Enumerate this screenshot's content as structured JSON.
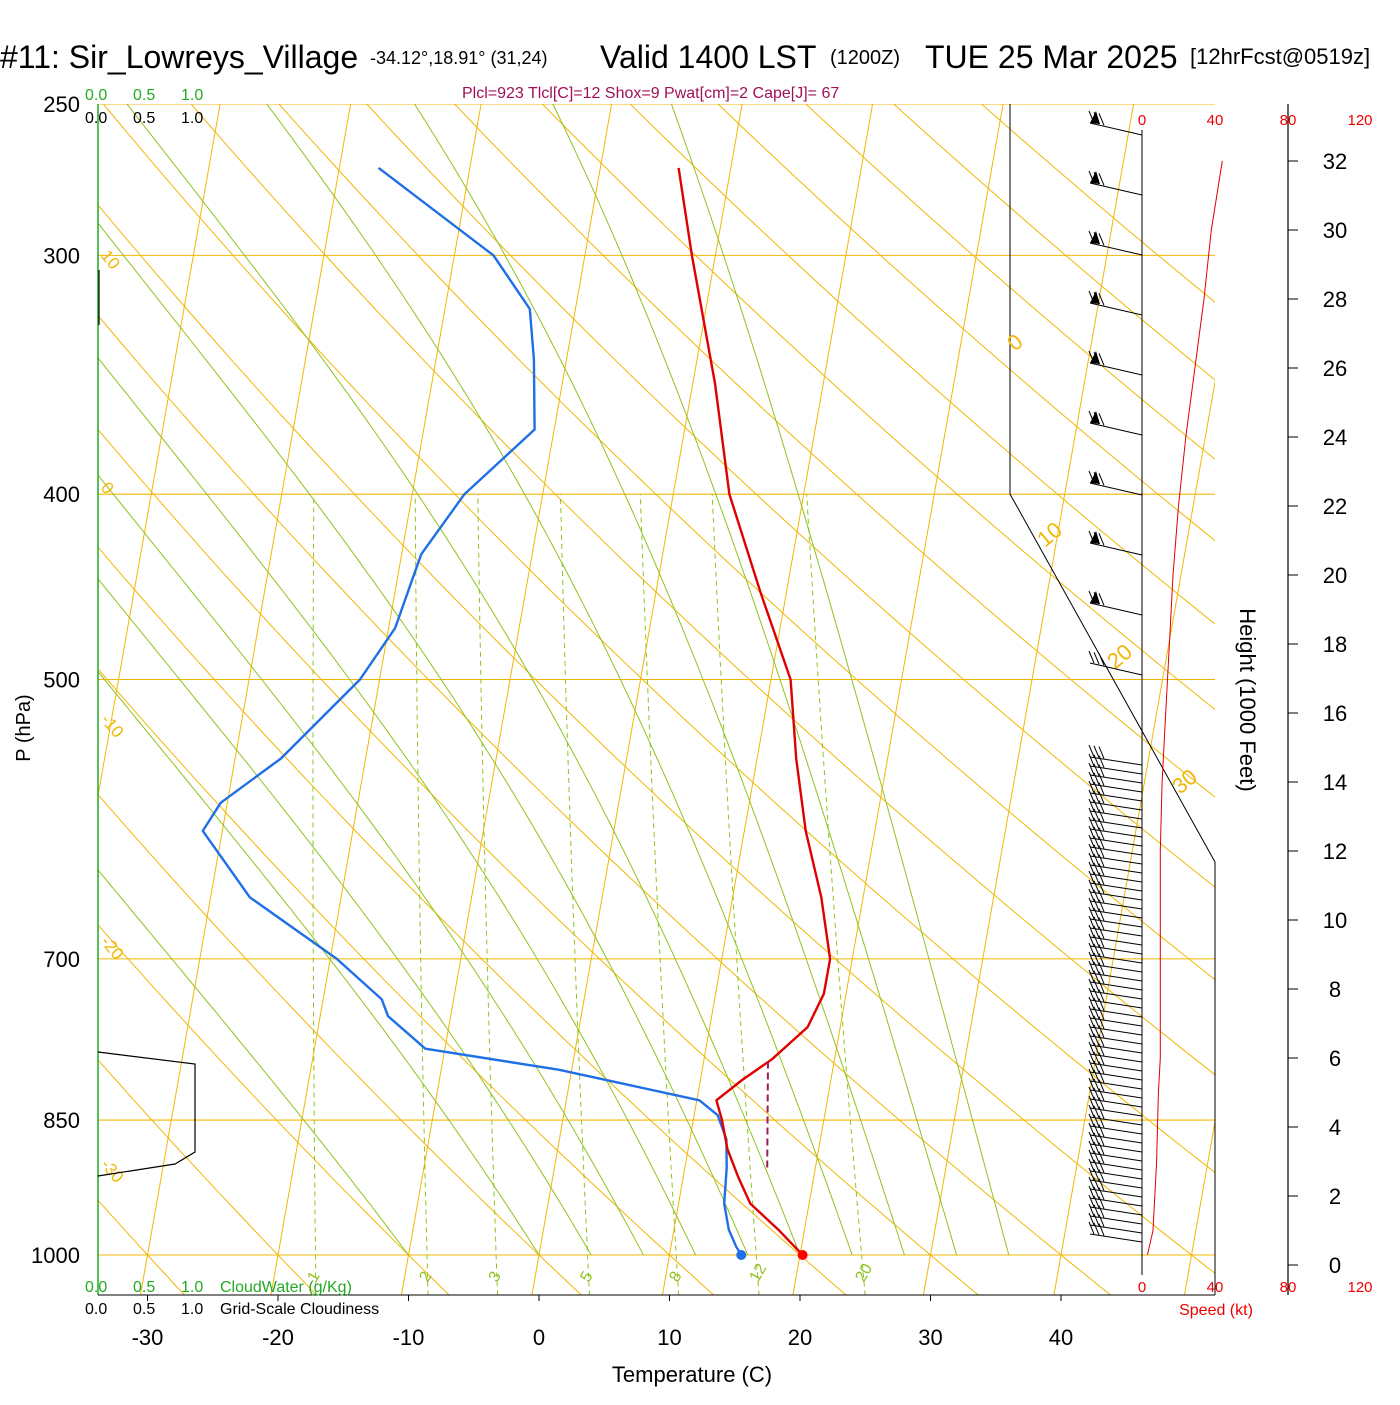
{
  "header": {
    "site": "#11: Sir_Lowreys_Village",
    "coords": "-34.12°,18.91° (31,24)",
    "valid": "Valid 1400 LST",
    "zulu": "(1200Z)",
    "date": "TUE 25 Mar 2025",
    "forecast": "[12hrFcst@0519z]"
  },
  "indices": "Plcl=923 Tlcl[C]=12 Shox=9 Pwat[cm]=2 Cape[J]= 67",
  "colors": {
    "isotherm": "#f2b705",
    "mixing_ratio": "#8fc31f",
    "temperature": "#e00000",
    "dewpoint": "#1f6fe6",
    "parcel": "#9b1b5a",
    "green_text": "#22aa22",
    "index_text": "#a0105a",
    "red_text": "#ee0000"
  },
  "scales": {
    "cloud_water_ticks": [
      "0.0",
      "0.5",
      "1.0"
    ],
    "cloudiness_ticks": [
      "0.0",
      "0.5",
      "1.0"
    ],
    "cloud_water_label": "CloudWater (g/Kg)",
    "cloudiness_label": "Grid-Scale Cloudiness",
    "speed_ticks": [
      "0",
      "40",
      "80",
      "120"
    ],
    "speed_label": "Speed (kt)"
  },
  "isotherm_labels": [
    "10",
    "0",
    "-10",
    "-20",
    "-30",
    "0",
    "10",
    "20",
    "30"
  ],
  "mixing_ratio_labels": [
    "1",
    "2",
    "3",
    "5",
    "8",
    "12",
    "20"
  ],
  "chart_data": {
    "type": "skew-t log-p sounding",
    "xlabel": "Temperature (C)",
    "ylabel": "P (hPa)",
    "height_label": "Height (1000 Feet)",
    "xlim": [
      -33,
      46
    ],
    "ylim_hPa": [
      1000,
      250
    ],
    "x_ticks": [
      -30,
      -20,
      -10,
      0,
      10,
      20,
      30,
      40
    ],
    "pressure_ticks": [
      250,
      300,
      400,
      500,
      700,
      850,
      1000
    ],
    "height_ticks_kft": [
      0,
      2,
      4,
      6,
      8,
      10,
      12,
      14,
      16,
      18,
      20,
      22,
      24,
      26,
      28,
      30,
      32
    ],
    "temperature_profile": [
      {
        "p": 1000,
        "t": 20.2
      },
      {
        "p": 970,
        "t": 18
      },
      {
        "p": 940,
        "t": 15.5
      },
      {
        "p": 910,
        "t": 14.2
      },
      {
        "p": 880,
        "t": 13
      },
      {
        "p": 850,
        "t": 12.2
      },
      {
        "p": 830,
        "t": 11.5
      },
      {
        "p": 810,
        "t": 13.2
      },
      {
        "p": 790,
        "t": 15.2
      },
      {
        "p": 760,
        "t": 17.5
      },
      {
        "p": 730,
        "t": 18.3
      },
      {
        "p": 700,
        "t": 18.3
      },
      {
        "p": 650,
        "t": 16.8
      },
      {
        "p": 600,
        "t": 14.7
      },
      {
        "p": 550,
        "t": 13.0
      },
      {
        "p": 500,
        "t": 11.5
      },
      {
        "p": 450,
        "t": 8.0
      },
      {
        "p": 400,
        "t": 4.3
      },
      {
        "p": 350,
        "t": 1.7
      },
      {
        "p": 300,
        "t": -1.8
      },
      {
        "p": 270,
        "t": -4.0
      }
    ],
    "dewpoint_profile": [
      {
        "p": 1000,
        "t": 15.5
      },
      {
        "p": 990,
        "t": 15
      },
      {
        "p": 970,
        "t": 14.2
      },
      {
        "p": 940,
        "t": 13.5
      },
      {
        "p": 900,
        "t": 13.2
      },
      {
        "p": 870,
        "t": 12.8
      },
      {
        "p": 845,
        "t": 11.8
      },
      {
        "p": 830,
        "t": 10.2
      },
      {
        "p": 800,
        "t": -1
      },
      {
        "p": 780,
        "t": -11.5
      },
      {
        "p": 750,
        "t": -14.8
      },
      {
        "p": 735,
        "t": -15.5
      },
      {
        "p": 700,
        "t": -19.5
      },
      {
        "p": 650,
        "t": -27
      },
      {
        "p": 600,
        "t": -31.5
      },
      {
        "p": 580,
        "t": -30.5
      },
      {
        "p": 550,
        "t": -26.5
      },
      {
        "p": 500,
        "t": -21.5
      },
      {
        "p": 470,
        "t": -19.5
      },
      {
        "p": 430,
        "t": -18.5
      },
      {
        "p": 400,
        "t": -16
      },
      {
        "p": 370,
        "t": -11.5
      },
      {
        "p": 340,
        "t": -12.5
      },
      {
        "p": 320,
        "t": -13.5
      },
      {
        "p": 300,
        "t": -17
      },
      {
        "p": 270,
        "t": -27
      }
    ],
    "parcel_segment": [
      {
        "p": 900,
        "t": 16.3
      },
      {
        "p": 790,
        "t": 14.9
      }
    ],
    "surface_temperature": 20.2,
    "surface_dewpoint": 15.5,
    "wind_speed_profile_kt": [
      {
        "h": 0.3,
        "s": 3
      },
      {
        "h": 1,
        "s": 6
      },
      {
        "h": 3,
        "s": 8
      },
      {
        "h": 5,
        "s": 9
      },
      {
        "h": 6,
        "s": 10
      },
      {
        "h": 8,
        "s": 10
      },
      {
        "h": 10,
        "s": 10
      },
      {
        "h": 12,
        "s": 10
      },
      {
        "h": 14,
        "s": 11
      },
      {
        "h": 16,
        "s": 13
      },
      {
        "h": 18,
        "s": 15
      },
      {
        "h": 20,
        "s": 17
      },
      {
        "h": 22,
        "s": 20
      },
      {
        "h": 24,
        "s": 24
      },
      {
        "h": 26,
        "s": 29
      },
      {
        "h": 28,
        "s": 34
      },
      {
        "h": 30,
        "s": 38
      },
      {
        "h": 32,
        "s": 44
      }
    ]
  }
}
